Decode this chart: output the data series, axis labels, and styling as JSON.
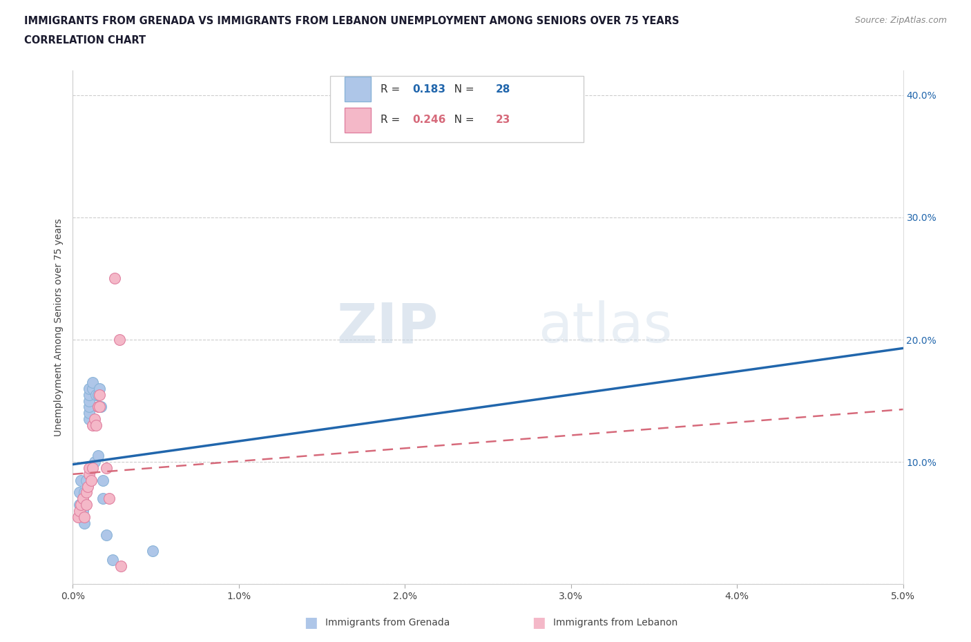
{
  "title_line1": "IMMIGRANTS FROM GRENADA VS IMMIGRANTS FROM LEBANON UNEMPLOYMENT AMONG SENIORS OVER 75 YEARS",
  "title_line2": "CORRELATION CHART",
  "source": "Source: ZipAtlas.com",
  "ylabel": "Unemployment Among Seniors over 75 years",
  "xlim": [
    0.0,
    0.05
  ],
  "ylim": [
    0.0,
    0.42
  ],
  "xticks": [
    0.0,
    0.01,
    0.02,
    0.03,
    0.04,
    0.05
  ],
  "yticks": [
    0.0,
    0.1,
    0.2,
    0.3,
    0.4
  ],
  "grenada_R": 0.183,
  "grenada_N": 28,
  "lebanon_R": 0.246,
  "lebanon_N": 23,
  "grenada_color": "#aec6e8",
  "lebanon_color": "#f4b8c8",
  "grenada_line_color": "#2166ac",
  "lebanon_line_color": "#d6697a",
  "watermark_zip": "ZIP",
  "watermark_atlas": "atlas",
  "grenada_x": [
    0.0004,
    0.0004,
    0.0004,
    0.0005,
    0.0006,
    0.0006,
    0.0007,
    0.0007,
    0.0008,
    0.001,
    0.001,
    0.001,
    0.001,
    0.001,
    0.001,
    0.0012,
    0.0012,
    0.0013,
    0.0014,
    0.0015,
    0.0015,
    0.0016,
    0.0017,
    0.0018,
    0.0018,
    0.002,
    0.0024,
    0.0048
  ],
  "grenada_y": [
    0.055,
    0.065,
    0.075,
    0.085,
    0.06,
    0.07,
    0.05,
    0.075,
    0.085,
    0.135,
    0.14,
    0.145,
    0.15,
    0.155,
    0.16,
    0.16,
    0.165,
    0.1,
    0.155,
    0.105,
    0.155,
    0.16,
    0.145,
    0.085,
    0.07,
    0.04,
    0.02,
    0.027
  ],
  "lebanon_x": [
    0.0003,
    0.0004,
    0.0005,
    0.0006,
    0.0007,
    0.0008,
    0.0008,
    0.0009,
    0.001,
    0.001,
    0.0011,
    0.0012,
    0.0012,
    0.0013,
    0.0014,
    0.0015,
    0.0016,
    0.0016,
    0.002,
    0.0022,
    0.0025,
    0.0028,
    0.0029
  ],
  "lebanon_y": [
    0.055,
    0.06,
    0.065,
    0.07,
    0.055,
    0.065,
    0.075,
    0.08,
    0.09,
    0.095,
    0.085,
    0.095,
    0.13,
    0.135,
    0.13,
    0.145,
    0.145,
    0.155,
    0.095,
    0.07,
    0.25,
    0.2,
    0.015
  ],
  "blue_line_x": [
    0.0,
    0.05
  ],
  "blue_line_y": [
    0.098,
    0.193
  ],
  "pink_line_x": [
    0.0,
    0.05
  ],
  "pink_line_y": [
    0.09,
    0.143
  ]
}
